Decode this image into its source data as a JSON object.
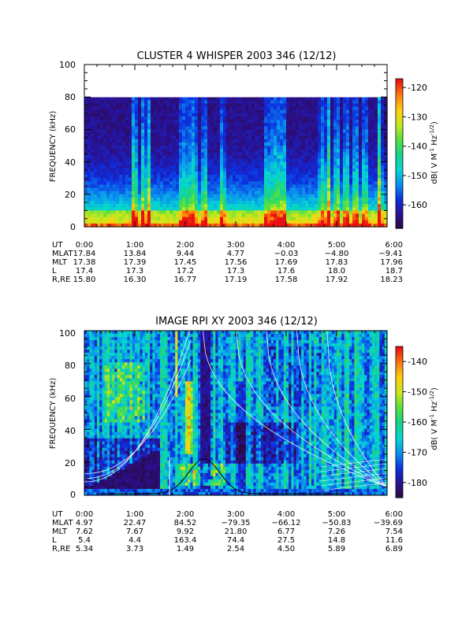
{
  "chart_data": [
    {
      "type": "heatmap",
      "title": "CLUSTER 4 WHISPER 2003 346 (12/12)",
      "ylabel": "FREQUENCY (kHz)",
      "ylim": [
        0,
        100
      ],
      "yticks": [
        "0",
        "20",
        "40",
        "60",
        "80",
        "100"
      ],
      "data_ylim": [
        0,
        80
      ],
      "xlim_hours": [
        0,
        6
      ],
      "colorbar": {
        "label": "dB( V M",
        "ticks": [
          "-120",
          "-130",
          "-140",
          "-150",
          "-160"
        ],
        "range": [
          -168,
          -117
        ]
      },
      "ephemeris": [
        {
          "name": "UT",
          "values": [
            "0:00",
            "1:00",
            "2:00",
            "3:00",
            "4:00",
            "5:00",
            "6:00"
          ]
        },
        {
          "name": "MLAT",
          "values": [
            "17.84",
            "13.84",
            "9.44",
            "4.77",
            "-0.03",
            "-4.80",
            "-9.41"
          ]
        },
        {
          "name": "MLT",
          "values": [
            "17.38",
            "17.39",
            "17.45",
            "17.56",
            "17.69",
            "17.83",
            "17.96"
          ]
        },
        {
          "name": "L",
          "values": [
            "17.4",
            "17.3",
            "17.2",
            "17.3",
            "17.6",
            "18.0",
            "18.7"
          ]
        },
        {
          "name": "R,RE",
          "values": [
            "15.80",
            "16.30",
            "16.77",
            "17.19",
            "17.58",
            "17.92",
            "18.23"
          ]
        }
      ]
    },
    {
      "type": "heatmap",
      "title": "IMAGE RPI XY 2003 346 (12/12)",
      "ylabel": "FREQUENCY (kHz)",
      "ylim": [
        0,
        100
      ],
      "yticks": [
        "0",
        "20",
        "40",
        "60",
        "80",
        "100"
      ],
      "data_ylim": [
        0,
        100
      ],
      "xlim_hours": [
        0,
        6
      ],
      "colorbar": {
        "label": "dB( V M",
        "ticks": [
          "-140",
          "-150",
          "-160",
          "-170",
          "-180"
        ],
        "range": [
          -185,
          -135
        ]
      },
      "ephemeris": [
        {
          "name": "UT",
          "values": [
            "0:00",
            "1:00",
            "2:00",
            "3:00",
            "4:00",
            "5:00",
            "6:00"
          ]
        },
        {
          "name": "MLAT",
          "values": [
            "4.97",
            "22.47",
            "84.52",
            "-79.35",
            "-66.12",
            "-50.83",
            "-39.69"
          ]
        },
        {
          "name": "MLT",
          "values": [
            "7.62",
            "7.67",
            "9.92",
            "21.80",
            "6.77",
            "7.26",
            "7.54"
          ]
        },
        {
          "name": "L",
          "values": [
            "5.4",
            "4.4",
            "163.4",
            "74.4",
            "27.5",
            "14.8",
            "11.6"
          ]
        },
        {
          "name": "R,RE",
          "values": [
            "5.34",
            "3.73",
            "1.49",
            "2.54",
            "4.50",
            "5.89",
            "6.89"
          ]
        }
      ]
    }
  ],
  "colors": {
    "colormap": [
      "#2a0a3c",
      "#2b1090",
      "#0d2fe0",
      "#0a8ff0",
      "#05d7d2",
      "#17d38a",
      "#55e040",
      "#c8e81c",
      "#ffcf10",
      "#ff7a10",
      "#e81010"
    ],
    "trace_white": "#ffffff",
    "trace_black": "#000000"
  }
}
